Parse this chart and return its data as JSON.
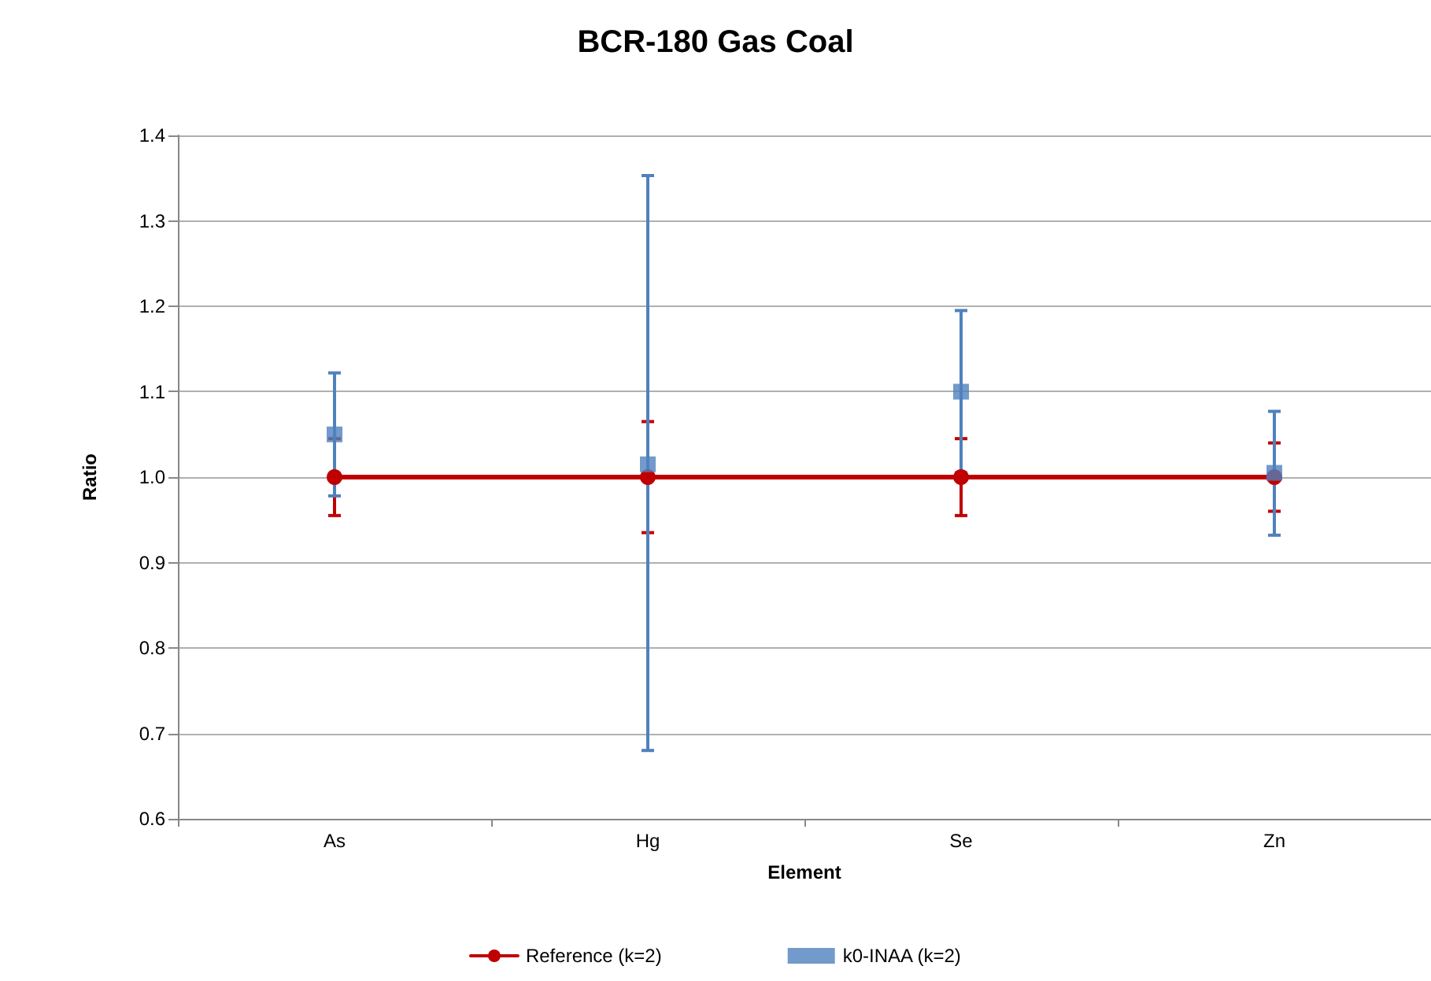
{
  "chart_data": {
    "type": "line",
    "title": "BCR-180 Gas Coal",
    "xlabel": "Element",
    "ylabel": "Ratio",
    "categories": [
      "As",
      "Hg",
      "Se",
      "Zn"
    ],
    "series": [
      {
        "name": "Reference (k=2)",
        "color": "#c00000",
        "marker": "circle",
        "values": [
          1.0,
          1.0,
          1.0,
          1.0
        ],
        "errors": [
          0.045,
          0.065,
          0.045,
          0.04
        ]
      },
      {
        "name": "k0-INAA (k=2)",
        "type": "scatter",
        "color": "#4f81bd",
        "marker": "square",
        "values": [
          1.05,
          1.015,
          1.1,
          1.005
        ],
        "errors": [
          [
            0.978,
            1.122
          ],
          [
            0.68,
            1.353
          ],
          [
            1.005,
            1.195
          ],
          [
            0.932,
            1.077
          ]
        ]
      }
    ],
    "ylim": [
      0.6,
      1.4
    ],
    "yticks": [
      0.6,
      0.7,
      0.8,
      0.9,
      {
        "value": 1,
        "label": "1.0"
      },
      1.1,
      1.2,
      1.3,
      1.4
    ],
    "grid": "y",
    "legend": "bottom"
  }
}
